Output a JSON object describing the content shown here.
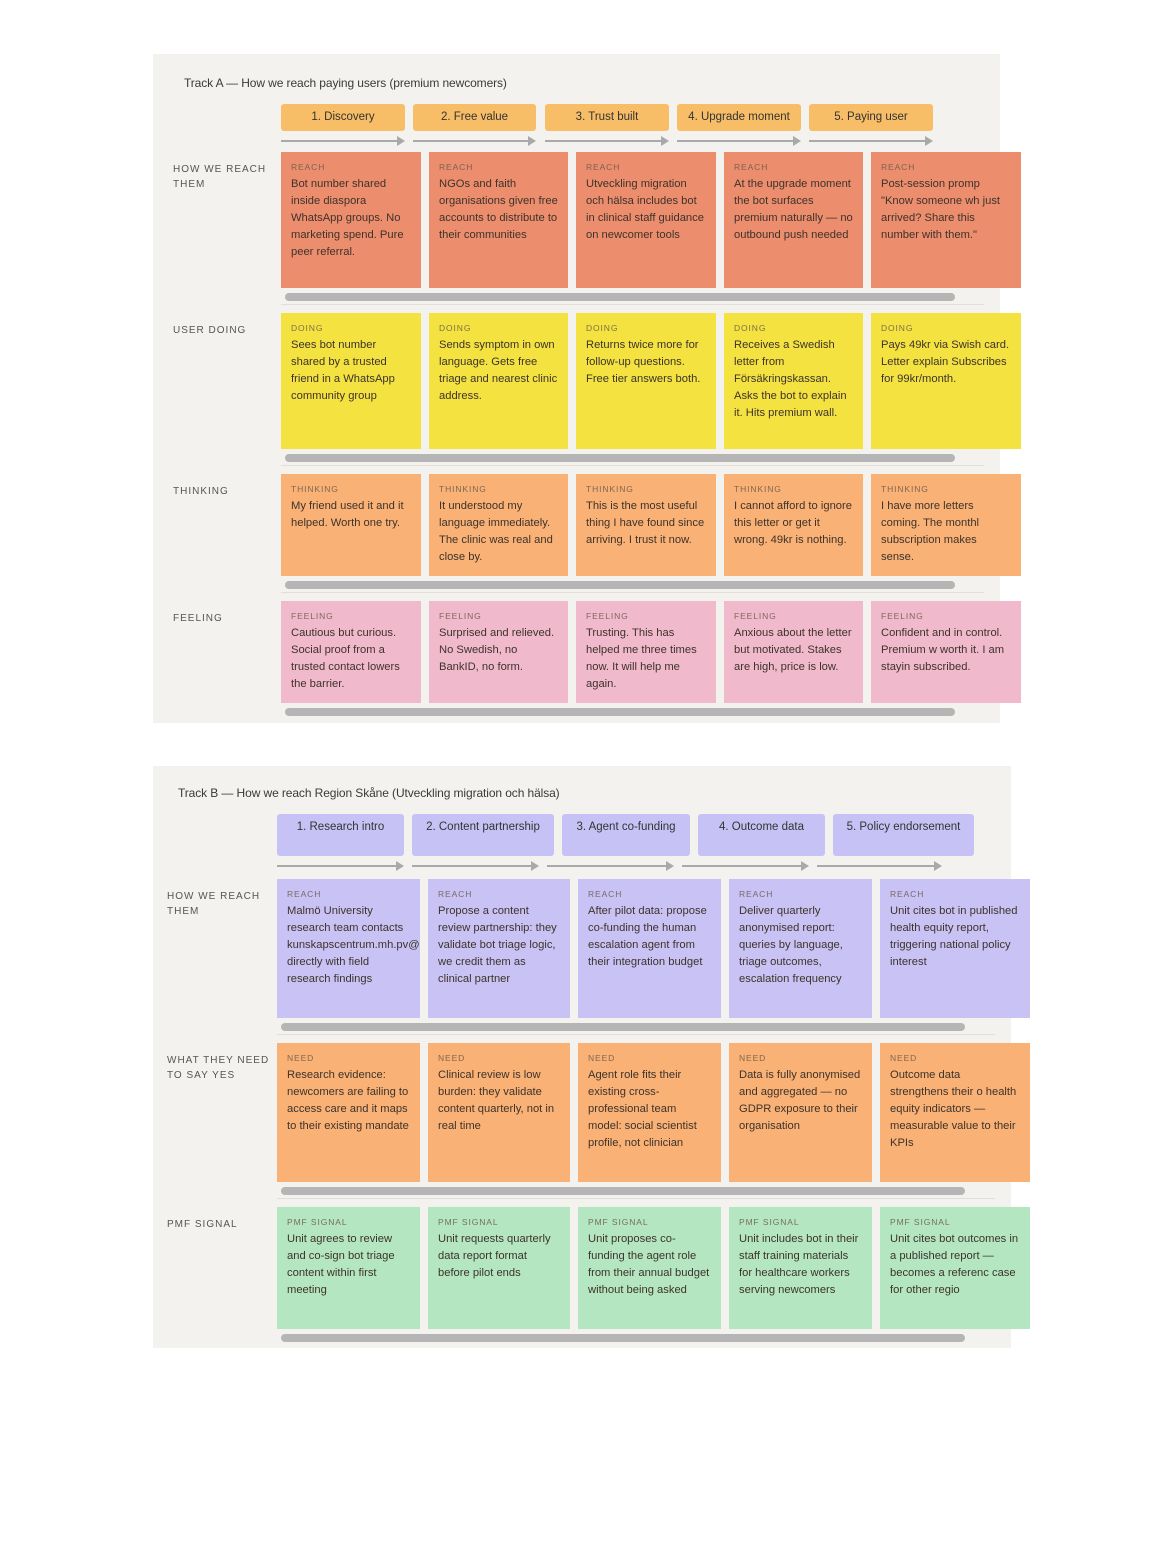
{
  "trackA": {
    "title": "Track A — How we reach paying users (premium newcomers)",
    "stages": [
      "1. Discovery",
      "2. Free value",
      "3. Trust built",
      "4. Upgrade moment",
      "5. Paying user"
    ],
    "rows": [
      {
        "label": "HOW WE REACH THEM",
        "tag": "REACH",
        "cards": [
          "Bot number shared inside diaspora WhatsApp groups. No marketing spend. Pure peer referral.",
          "NGOs and faith organisations given free accounts to distribute to their communities",
          "Utveckling migration och hälsa includes bot in clinical staff guidance on newcomer tools",
          "At the upgrade moment the bot surfaces premium naturally — no outbound push needed",
          "Post-session promp \"Know someone wh just arrived? Share this number with them.\""
        ]
      },
      {
        "label": "USER DOING",
        "tag": "DOING",
        "cards": [
          "Sees bot number shared by a trusted friend in a WhatsApp community group",
          "Sends symptom in own language. Gets free triage and nearest clinic address.",
          "Returns twice more for follow-up questions. Free tier answers both.",
          "Receives a Swedish letter from Försäkringskassan. Asks the bot to explain it. Hits premium wall.",
          "Pays 49kr via Swish card. Letter explain Subscribes for 99kr/month."
        ]
      },
      {
        "label": "THINKING",
        "tag": "THINKING",
        "cards": [
          "My friend used it and it helped. Worth one try.",
          "It understood my language immediately. The clinic was real and close by.",
          "This is the most useful thing I have found since arriving. I trust it now.",
          "I cannot afford to ignore this letter or get it wrong. 49kr is nothing.",
          "I have more letters coming. The monthl subscription makes sense."
        ]
      },
      {
        "label": "FEELING",
        "tag": "FEELING",
        "cards": [
          "Cautious but curious. Social proof from a trusted contact lowers the barrier.",
          "Surprised and relieved. No Swedish, no BankID, no form.",
          "Trusting. This has helped me three times now. It will help me again.",
          "Anxious about the letter but motivated. Stakes are high, price is low.",
          "Confident and in control. Premium w worth it. I am stayin subscribed."
        ]
      }
    ]
  },
  "trackB": {
    "title": "Track B — How we reach Region Skåne (Utveckling migration och hälsa)",
    "stages": [
      "1. Research intro",
      "2. Content partnership",
      "3. Agent co-funding",
      "4. Outcome data",
      "5. Policy endorsement"
    ],
    "rows": [
      {
        "label": "HOW WE REACH THEM",
        "tag": "REACH",
        "cards": [
          "Malmö University research team contacts kunskapscentrum.mh.pv@ directly with field research findings",
          "Propose a content review partnership: they validate bot triage logic, we credit them as clinical partner",
          "After pilot data: propose co-funding the human escalation agent from their integration budget",
          "Deliver quarterly anonymised report: queries by language, triage outcomes, escalation frequency",
          "Unit cites bot in published health equity report, triggering national policy interest"
        ]
      },
      {
        "label": "WHAT THEY NEED TO SAY YES",
        "tag": "NEED",
        "cards": [
          "Research evidence: newcomers are failing to access care and it maps to their existing mandate",
          "Clinical review is low burden: they validate content quarterly, not in real time",
          "Agent role fits their existing cross-professional team model: social scientist profile, not clinician",
          "Data is fully anonymised and aggregated — no GDPR exposure to their organisation",
          "Outcome data strengthens their o health equity indicators — measurable value to their KPIs"
        ]
      },
      {
        "label": "PMF SIGNAL",
        "tag": "PMF SIGNAL",
        "cards": [
          "Unit agrees to review and co-sign bot triage content within first meeting",
          "Unit requests quarterly data report format before pilot ends",
          "Unit proposes co-funding the agent role from their annual budget without being asked",
          "Unit includes bot in their staff training materials for healthcare workers serving newcomers",
          "Unit cites bot outcomes in a published report — becomes a referenc case for other regio"
        ]
      }
    ]
  },
  "colors": {
    "reach": "#ec8d6e",
    "doing": "#f4e241",
    "thinking": "#f9b176",
    "feeling": "#f1b9cc",
    "reachB": "#c8c3f4",
    "need": "#f9b176",
    "pmf": "#b4e6c2",
    "stageA": "#f8be67",
    "stageB": "#c7c2f5"
  }
}
